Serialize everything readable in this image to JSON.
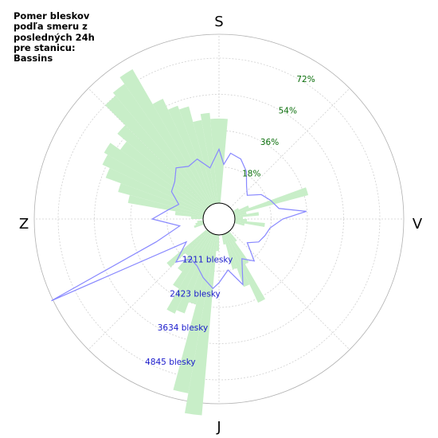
{
  "chart_data": {
    "type": "polar",
    "title": "Pomer bleskov podľa smeru z posledných 24h pre stanicu: Bassins",
    "directions": [
      "S",
      "V",
      "J",
      "Z"
    ],
    "percent_labels": [
      "18%",
      "36%",
      "54%",
      "72%"
    ],
    "percent_ticks": [
      18,
      36,
      54,
      72
    ],
    "count_labels": [
      "1211 blesky",
      "2423 blesky",
      "3634 blesky",
      "4845 blesky"
    ],
    "count_ticks": [
      1211,
      2423,
      3634,
      4845
    ],
    "grid": true,
    "bars": {
      "name": "percent",
      "color": "#c8eec8",
      "bin_width_deg": 5,
      "bins": [
        {
          "angle": 2.5,
          "value": 0
        },
        {
          "angle": 7.5,
          "value": 0
        },
        {
          "angle": 12.5,
          "value": 5
        },
        {
          "angle": 17.5,
          "value": 18
        },
        {
          "angle": 22.5,
          "value": 28
        },
        {
          "angle": 27.5,
          "value": 38
        },
        {
          "angle": 32.5,
          "value": 18
        },
        {
          "angle": 37.5,
          "value": 6
        },
        {
          "angle": 77.5,
          "value": 5
        },
        {
          "angle": 82.5,
          "value": 15
        },
        {
          "angle": 87.5,
          "value": 6
        },
        {
          "angle": 92.5,
          "value": 4
        },
        {
          "angle": 97.5,
          "value": 12
        },
        {
          "angle": 102.5,
          "value": 6
        },
        {
          "angle": 107.5,
          "value": 38
        },
        {
          "angle": 112.5,
          "value": 8
        },
        {
          "angle": 117.5,
          "value": 3
        },
        {
          "angle": 177.5,
          "value": 42
        },
        {
          "angle": 182.5,
          "value": 42
        },
        {
          "angle": 187.5,
          "value": 45
        },
        {
          "angle": 192.5,
          "value": 42
        },
        {
          "angle": 197.5,
          "value": 50
        },
        {
          "angle": 202.5,
          "value": 52
        },
        {
          "angle": 207.5,
          "value": 58
        },
        {
          "angle": 212.5,
          "value": 78
        },
        {
          "angle": 217.5,
          "value": 74
        },
        {
          "angle": 222.5,
          "value": 72
        },
        {
          "angle": 227.5,
          "value": 58
        },
        {
          "angle": 232.5,
          "value": 52
        },
        {
          "angle": 237.5,
          "value": 58
        },
        {
          "angle": 242.5,
          "value": 56
        },
        {
          "angle": 247.5,
          "value": 52
        },
        {
          "angle": 252.5,
          "value": 44
        },
        {
          "angle": 257.5,
          "value": 38
        },
        {
          "angle": 262.5,
          "value": 14
        },
        {
          "angle": 267.5,
          "value": 6
        },
        {
          "angle": 277.5,
          "value": 3
        },
        {
          "angle": 282.5,
          "value": 4
        },
        {
          "angle": 287.5,
          "value": 5
        },
        {
          "angle": 312.5,
          "value": 26
        },
        {
          "angle": 317.5,
          "value": 16
        },
        {
          "angle": 322.5,
          "value": 24
        },
        {
          "angle": 327.5,
          "value": 32
        },
        {
          "angle": 332.5,
          "value": 44
        },
        {
          "angle": 337.5,
          "value": 42
        },
        {
          "angle": 342.5,
          "value": 36
        },
        {
          "angle": 347.5,
          "value": 80
        },
        {
          "angle": 352.5,
          "value": 90
        },
        {
          "angle": 357.5,
          "value": 8
        }
      ]
    },
    "line": {
      "name": "count",
      "color": "#8888ff",
      "points": [
        {
          "angle": 0,
          "value": 1600
        },
        {
          "angle": 10,
          "value": 1200
        },
        {
          "angle": 20,
          "value": 1800
        },
        {
          "angle": 30,
          "value": 1000
        },
        {
          "angle": 40,
          "value": 1300
        },
        {
          "angle": 50,
          "value": 700
        },
        {
          "angle": 60,
          "value": 1000
        },
        {
          "angle": 70,
          "value": 1100
        },
        {
          "angle": 80,
          "value": 1200
        },
        {
          "angle": 90,
          "value": 1600
        },
        {
          "angle": 95,
          "value": 2400
        },
        {
          "angle": 100,
          "value": 1500
        },
        {
          "angle": 110,
          "value": 1300
        },
        {
          "angle": 120,
          "value": 1100
        },
        {
          "angle": 130,
          "value": 700
        },
        {
          "angle": 140,
          "value": 900
        },
        {
          "angle": 150,
          "value": 1300
        },
        {
          "angle": 160,
          "value": 1600
        },
        {
          "angle": 170,
          "value": 1700
        },
        {
          "angle": 175,
          "value": 1300
        },
        {
          "angle": 180,
          "value": 1800
        },
        {
          "angle": 190,
          "value": 1200
        },
        {
          "angle": 200,
          "value": 1600
        },
        {
          "angle": 210,
          "value": 1500
        },
        {
          "angle": 220,
          "value": 1700
        },
        {
          "angle": 230,
          "value": 1400
        },
        {
          "angle": 240,
          "value": 1300
        },
        {
          "angle": 250,
          "value": 900
        },
        {
          "angle": 260,
          "value": 1200
        },
        {
          "angle": 270,
          "value": 1700
        },
        {
          "angle": 280,
          "value": 800
        },
        {
          "angle": 290,
          "value": 1700
        },
        {
          "angle": 296,
          "value": 5700
        },
        {
          "angle": 305,
          "value": 800
        },
        {
          "angle": 315,
          "value": 1500
        },
        {
          "angle": 325,
          "value": 1100
        },
        {
          "angle": 335,
          "value": 1200
        },
        {
          "angle": 345,
          "value": 1500
        },
        {
          "angle": 355,
          "value": 1800
        }
      ]
    }
  }
}
